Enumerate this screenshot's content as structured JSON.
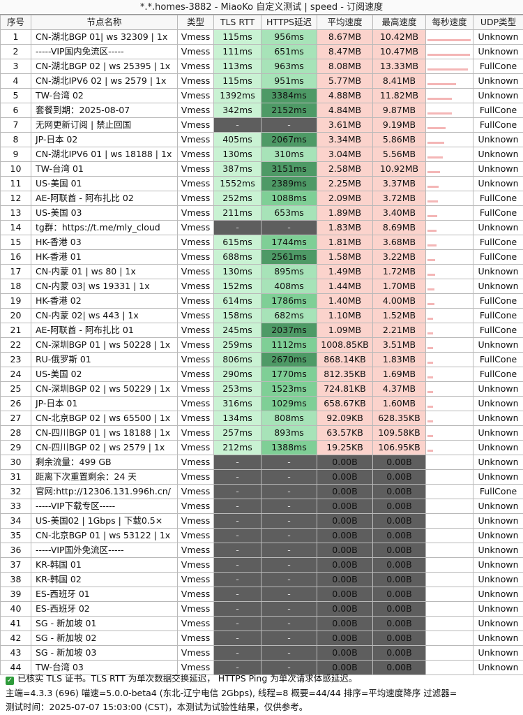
{
  "title": "*.*.homes-3882 - MiaoKo 自定义测试 | speed - 订阅速度",
  "columns": [
    "序号",
    "节点名称",
    "类型",
    "TLS RTT",
    "HTTPS延迟",
    "平均速度",
    "最高速度",
    "每秒速度",
    "UDP类型"
  ],
  "rows": [
    [
      "1",
      "CN-湖北BGP 01| ws 32309 | 1x",
      "Vmess",
      "115ms",
      "956ms",
      "8.67MB",
      "10.42MB",
      "Unknown"
    ],
    [
      "2",
      "-----VIP国内免流区-----",
      "Vmess",
      "111ms",
      "651ms",
      "8.47MB",
      "10.47MB",
      "Unknown"
    ],
    [
      "3",
      "CN-湖北BGP 02 | ws 25395 | 1x",
      "Vmess",
      "113ms",
      "963ms",
      "8.08MB",
      "13.33MB",
      "FullCone"
    ],
    [
      "4",
      "CN-湖北IPV6 02 | ws 2579 | 1x",
      "Vmess",
      "115ms",
      "951ms",
      "5.77MB",
      "8.41MB",
      "Unknown"
    ],
    [
      "5",
      "TW-台湾 02",
      "Vmess",
      "1392ms",
      "3384ms",
      "4.88MB",
      "11.82MB",
      "Unknown"
    ],
    [
      "6",
      "套餐到期：2025-08-07",
      "Vmess",
      "342ms",
      "2152ms",
      "4.84MB",
      "9.87MB",
      "FullCone"
    ],
    [
      "7",
      "无网更新订阅 | 禁止回国",
      "Vmess",
      "-",
      "-",
      "3.61MB",
      "9.19MB",
      "FullCone"
    ],
    [
      "8",
      "JP-日本 02",
      "Vmess",
      "405ms",
      "2067ms",
      "3.34MB",
      "5.86MB",
      "Unknown"
    ],
    [
      "9",
      "CN-湖北IPV6 01 | ws 18188 | 1x",
      "Vmess",
      "130ms",
      "310ms",
      "3.04MB",
      "5.56MB",
      "Unknown"
    ],
    [
      "10",
      "TW-台湾 01",
      "Vmess",
      "387ms",
      "3151ms",
      "2.58MB",
      "10.92MB",
      "Unknown"
    ],
    [
      "11",
      "US-美国 01",
      "Vmess",
      "1552ms",
      "2389ms",
      "2.25MB",
      "3.37MB",
      "Unknown"
    ],
    [
      "12",
      "AE-阿联酋 - 阿布扎比 02",
      "Vmess",
      "252ms",
      "1088ms",
      "2.09MB",
      "3.72MB",
      "FullCone"
    ],
    [
      "13",
      "US-美国 03",
      "Vmess",
      "211ms",
      "653ms",
      "1.89MB",
      "3.40MB",
      "FullCone"
    ],
    [
      "14",
      "tg群：https://t.me/mly_cloud",
      "Vmess",
      "-",
      "-",
      "1.83MB",
      "8.69MB",
      "Unknown"
    ],
    [
      "15",
      "HK-香港 03",
      "Vmess",
      "615ms",
      "1744ms",
      "1.81MB",
      "3.68MB",
      "FullCone"
    ],
    [
      "16",
      "HK-香港 01",
      "Vmess",
      "688ms",
      "2561ms",
      "1.58MB",
      "3.22MB",
      "FullCone"
    ],
    [
      "17",
      "CN-内蒙 01 | ws 80 | 1x",
      "Vmess",
      "130ms",
      "895ms",
      "1.49MB",
      "1.72MB",
      "Unknown"
    ],
    [
      "18",
      "CN-内蒙 03| ws 19331 | 1x",
      "Vmess",
      "152ms",
      "408ms",
      "1.44MB",
      "1.70MB",
      "Unknown"
    ],
    [
      "19",
      "HK-香港 02",
      "Vmess",
      "614ms",
      "1786ms",
      "1.40MB",
      "4.00MB",
      "FullCone"
    ],
    [
      "20",
      "CN-内蒙 02| ws 443 | 1x",
      "Vmess",
      "158ms",
      "682ms",
      "1.10MB",
      "1.52MB",
      "FullCone"
    ],
    [
      "21",
      "AE-阿联酋 - 阿布扎比 01",
      "Vmess",
      "245ms",
      "2037ms",
      "1.09MB",
      "2.21MB",
      "FullCone"
    ],
    [
      "22",
      "CN-深圳BGP 01 | ws 50228 | 1x",
      "Vmess",
      "259ms",
      "1112ms",
      "1008.85KB",
      "3.51MB",
      "Unknown"
    ],
    [
      "23",
      "RU-俄罗斯 01",
      "Vmess",
      "806ms",
      "2670ms",
      "868.14KB",
      "1.83MB",
      "FullCone"
    ],
    [
      "24",
      "US-美国 02",
      "Vmess",
      "290ms",
      "1770ms",
      "812.35KB",
      "1.69MB",
      "FullCone"
    ],
    [
      "25",
      "CN-深圳BGP 02 | ws 50229 | 1x",
      "Vmess",
      "253ms",
      "1523ms",
      "724.81KB",
      "4.37MB",
      "Unknown"
    ],
    [
      "26",
      "JP-日本 01",
      "Vmess",
      "316ms",
      "1029ms",
      "658.67KB",
      "1.60MB",
      "Unknown"
    ],
    [
      "27",
      "CN-北京BGP 02 | ws 65500 | 1x",
      "Vmess",
      "134ms",
      "808ms",
      "92.09KB",
      "628.35KB",
      "Unknown"
    ],
    [
      "28",
      "CN-四川BGP 01 | ws 18188 | 1x",
      "Vmess",
      "257ms",
      "893ms",
      "63.57KB",
      "109.58KB",
      "Unknown"
    ],
    [
      "29",
      "CN-四川BGP 02 | ws 2579 | 1x",
      "Vmess",
      "212ms",
      "1388ms",
      "19.25KB",
      "106.95KB",
      "Unknown"
    ],
    [
      "30",
      "剩余流量：499 GB",
      "Vmess",
      "-",
      "-",
      "0.00B",
      "0.00B",
      "Unknown"
    ],
    [
      "31",
      "距离下次重置剩余：24 天",
      "Vmess",
      "-",
      "-",
      "0.00B",
      "0.00B",
      "Unknown"
    ],
    [
      "32",
      "官网:http://12306.131.996h.cn/",
      "Vmess",
      "-",
      "-",
      "0.00B",
      "0.00B",
      "FullCone"
    ],
    [
      "33",
      "-----VIP下载专区-----",
      "Vmess",
      "-",
      "-",
      "0.00B",
      "0.00B",
      "Unknown"
    ],
    [
      "34",
      "US-美国02 | 1Gbps | 下载0.5×",
      "Vmess",
      "-",
      "-",
      "0.00B",
      "0.00B",
      "Unknown"
    ],
    [
      "35",
      "CN-北京BGP 01 | ws 53122 | 1x",
      "Vmess",
      "-",
      "-",
      "0.00B",
      "0.00B",
      "Unknown"
    ],
    [
      "36",
      "-----VIP国外免流区-----",
      "Vmess",
      "-",
      "-",
      "0.00B",
      "0.00B",
      "Unknown"
    ],
    [
      "37",
      "KR-韩国 01",
      "Vmess",
      "-",
      "-",
      "0.00B",
      "0.00B",
      "Unknown"
    ],
    [
      "38",
      "KR-韩国 02",
      "Vmess",
      "-",
      "-",
      "0.00B",
      "0.00B",
      "Unknown"
    ],
    [
      "39",
      "ES-西班牙 01",
      "Vmess",
      "-",
      "-",
      "0.00B",
      "0.00B",
      "Unknown"
    ],
    [
      "40",
      "ES-西班牙 02",
      "Vmess",
      "-",
      "-",
      "0.00B",
      "0.00B",
      "Unknown"
    ],
    [
      "41",
      "SG - 新加坡 01",
      "Vmess",
      "-",
      "-",
      "0.00B",
      "0.00B",
      "Unknown"
    ],
    [
      "42",
      "SG - 新加坡 02",
      "Vmess",
      "-",
      "-",
      "0.00B",
      "0.00B",
      "Unknown"
    ],
    [
      "43",
      "SG - 新加坡 03",
      "Vmess",
      "-",
      "-",
      "0.00B",
      "0.00B",
      "Unknown"
    ],
    [
      "44",
      "TW-台湾 03",
      "Vmess",
      "-",
      "-",
      "0.00B",
      "0.00B",
      "Unknown"
    ]
  ],
  "footer": {
    "line1": "已核实 TLS 证书。TLS RTT 为单次数据交换延迟， HTTPS Ping 为单次请求体感延迟。",
    "line2": "主端=4.3.3 (696) 喵速=5.0.0-beta4 (东北-辽宁电信 2Gbps), 线程=8 概要=44/44 排序=平均速度降序 过滤器=",
    "line3": "测试时间：2025-07-07 15:03:00 (CST)，本测试为试验性结果，仅供参考。"
  },
  "colors": {
    "rtt_green": "#c9f2d3",
    "https_light": "#a7e3b8",
    "https_mid": "#7fcf96",
    "https_dark": "#4e9a66",
    "speed_pink": "#fbd3cc",
    "gray": "#5e5e5e"
  }
}
